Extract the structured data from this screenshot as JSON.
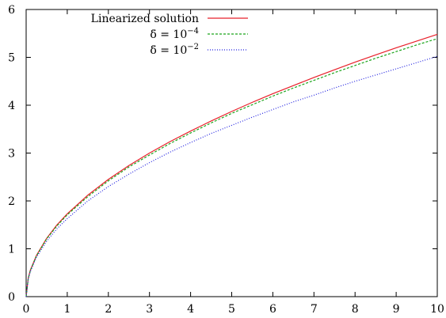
{
  "chart_data": {
    "type": "line",
    "title": "",
    "xlabel": "",
    "ylabel": "",
    "xlim": [
      0,
      10
    ],
    "ylim": [
      0,
      6
    ],
    "grid": false,
    "legend_position": "top-left",
    "x_ticks": [
      "0",
      "1",
      "2",
      "3",
      "4",
      "5",
      "6",
      "7",
      "8",
      "9",
      "10"
    ],
    "y_ticks": [
      "0",
      "1",
      "2",
      "3",
      "4",
      "5",
      "6"
    ],
    "legend": {
      "linearized": "Linearized solution",
      "delta_symbol": "δ̄",
      "equals_ten": " = 10",
      "exp1": "−4",
      "exp2": "−2"
    },
    "series": [
      {
        "name": "Linearized solution",
        "color": "#e8202a",
        "dash": "solid",
        "x": [
          0,
          0.05,
          0.1,
          0.25,
          0.5,
          0.75,
          1,
          1.5,
          2,
          2.5,
          3,
          3.5,
          4,
          4.5,
          5,
          5.5,
          6,
          6.5,
          7,
          7.5,
          8,
          8.5,
          9,
          9.5,
          10
        ],
        "y": [
          0,
          0.38,
          0.55,
          0.86,
          1.22,
          1.5,
          1.73,
          2.12,
          2.45,
          2.74,
          3.0,
          3.24,
          3.46,
          3.67,
          3.87,
          4.06,
          4.24,
          4.41,
          4.58,
          4.74,
          4.9,
          5.05,
          5.2,
          5.34,
          5.48
        ]
      },
      {
        "name": "δ̄ = 10−4",
        "color": "#1aa51a",
        "dash": "dashed",
        "x": [
          0,
          0.05,
          0.1,
          0.25,
          0.5,
          0.75,
          1,
          1.5,
          2,
          2.5,
          3,
          3.5,
          4,
          4.5,
          5,
          5.5,
          6,
          6.5,
          7,
          7.5,
          8,
          8.5,
          9,
          9.5,
          10
        ],
        "y": [
          0,
          0.37,
          0.54,
          0.85,
          1.21,
          1.48,
          1.71,
          2.09,
          2.42,
          2.71,
          2.96,
          3.2,
          3.42,
          3.63,
          3.83,
          4.01,
          4.19,
          4.36,
          4.52,
          4.68,
          4.83,
          4.98,
          5.12,
          5.26,
          5.39
        ]
      },
      {
        "name": "δ̄ = 10−2",
        "color": "#2020e0",
        "dash": "dotted",
        "x": [
          0,
          0.05,
          0.1,
          0.25,
          0.5,
          0.75,
          1,
          1.5,
          2,
          2.5,
          3,
          3.5,
          4,
          4.5,
          5,
          5.5,
          6,
          6.5,
          7,
          7.5,
          8,
          8.5,
          9,
          9.5,
          10
        ],
        "y": [
          0,
          0.36,
          0.52,
          0.82,
          1.16,
          1.42,
          1.63,
          2.0,
          2.3,
          2.56,
          2.8,
          3.02,
          3.22,
          3.41,
          3.58,
          3.75,
          3.91,
          4.07,
          4.21,
          4.36,
          4.5,
          4.63,
          4.76,
          4.89,
          5.02
        ]
      }
    ]
  }
}
